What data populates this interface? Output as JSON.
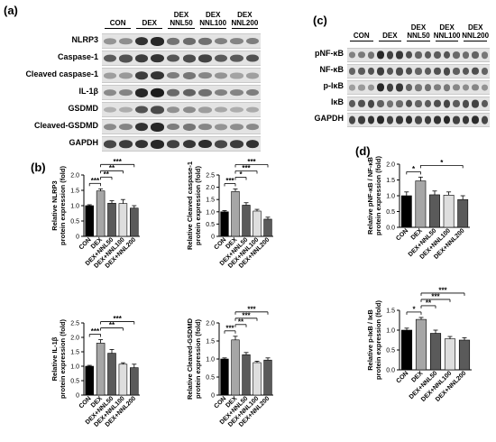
{
  "panels": {
    "a": "(a)",
    "b": "(b)",
    "c": "(c)",
    "d": "(d)"
  },
  "blot_a": {
    "lanes": [
      "CON",
      "DEX",
      "DEX\nNNL50",
      "DEX\nNNL100",
      "DEX\nNNL200"
    ],
    "rows": [
      "NLRP3",
      "Caspase-1",
      "Cleaved caspase-1",
      "IL-1β",
      "GSDMD",
      "Cleaved-GSDMD",
      "GAPDH"
    ],
    "intensity": [
      [
        0.45,
        0.85,
        0.6,
        0.55,
        0.5
      ],
      [
        0.75,
        0.8,
        0.75,
        0.75,
        0.7
      ],
      [
        0.4,
        0.8,
        0.55,
        0.45,
        0.35
      ],
      [
        0.5,
        0.9,
        0.65,
        0.55,
        0.5
      ],
      [
        0.3,
        0.7,
        0.45,
        0.35,
        0.3
      ],
      [
        0.5,
        0.85,
        0.55,
        0.45,
        0.45
      ],
      [
        0.85,
        0.85,
        0.85,
        0.85,
        0.85
      ]
    ]
  },
  "blot_c": {
    "lanes": [
      "CON",
      "DEX",
      "DEX\nNNL50",
      "DEX\nNNL100",
      "DEX\nNNL200"
    ],
    "rows": [
      "pNF-κB",
      "NF-κB",
      "p-IκB",
      "IκB",
      "GAPDH"
    ],
    "intensity": [
      [
        0.55,
        0.85,
        0.7,
        0.65,
        0.6
      ],
      [
        0.7,
        0.75,
        0.7,
        0.7,
        0.7
      ],
      [
        0.4,
        0.85,
        0.6,
        0.5,
        0.45
      ],
      [
        0.75,
        0.6,
        0.7,
        0.72,
        0.75
      ],
      [
        0.85,
        0.85,
        0.85,
        0.85,
        0.85
      ]
    ]
  },
  "colors": {
    "CON": "#000000",
    "DEX": "#a6a6a6",
    "DEX+NNL50": "#5a5a5a",
    "DEX+NNL100": "#dedede",
    "DEX+NNL200": "#5a5a5a"
  },
  "chart_data": [
    {
      "id": "b1",
      "type": "bar",
      "categories": [
        "CON",
        "DEX",
        "DEX+NNL50",
        "DEX+NNL100",
        "DEX+NNL200"
      ],
      "values": [
        1.0,
        1.48,
        1.08,
        1.07,
        0.92
      ],
      "errors": [
        0.03,
        0.07,
        0.08,
        0.13,
        0.08
      ],
      "ylim": [
        0,
        2
      ],
      "yticks": [
        0,
        0.5,
        1.0,
        1.5,
        2.0
      ],
      "ylabel": [
        "Relative NLRP3",
        "protein expression (fold)"
      ],
      "sig": [
        {
          "from": 0,
          "to": 1,
          "label": "***"
        },
        {
          "from": 1,
          "to": 2,
          "label": "**"
        },
        {
          "from": 1,
          "to": 3,
          "label": "**"
        },
        {
          "from": 1,
          "to": 4,
          "label": "***"
        }
      ]
    },
    {
      "id": "b2",
      "type": "bar",
      "categories": [
        "CON",
        "DEX",
        "DEX+NNL50",
        "DEX+NNL100",
        "DEX+NNL200"
      ],
      "values": [
        1.0,
        1.83,
        1.27,
        1.03,
        0.7
      ],
      "errors": [
        0.05,
        0.1,
        0.1,
        0.07,
        0.08
      ],
      "ylim": [
        0,
        2.5
      ],
      "yticks": [
        0,
        0.5,
        1.0,
        1.5,
        2.0,
        2.5
      ],
      "ylabel": [
        "Relative Cleaved caspase-1",
        "protein expression (fold)"
      ],
      "sig": [
        {
          "from": 0,
          "to": 1,
          "label": "***"
        },
        {
          "from": 1,
          "to": 2,
          "label": "*"
        },
        {
          "from": 1,
          "to": 3,
          "label": "***"
        },
        {
          "from": 1,
          "to": 4,
          "label": "***"
        }
      ]
    },
    {
      "id": "b3",
      "type": "bar",
      "categories": [
        "CON",
        "DEX",
        "DEX+NNL50",
        "DEX+NNL100",
        "DEX+NNL200"
      ],
      "values": [
        1.0,
        1.8,
        1.45,
        1.07,
        0.95
      ],
      "errors": [
        0.03,
        0.12,
        0.13,
        0.05,
        0.12
      ],
      "ylim": [
        0,
        2.5
      ],
      "yticks": [
        0,
        0.5,
        1.0,
        1.5,
        2.0,
        2.5
      ],
      "ylabel": [
        "Relative IL-1β",
        "protein expression (fold)"
      ],
      "sig": [
        {
          "from": 0,
          "to": 1,
          "label": "***"
        },
        {
          "from": 1,
          "to": 3,
          "label": "**"
        },
        {
          "from": 1,
          "to": 4,
          "label": "***"
        }
      ]
    },
    {
      "id": "b4",
      "type": "bar",
      "categories": [
        "CON",
        "DEX",
        "DEX+NNL50",
        "DEX+NNL100",
        "DEX+NNL200"
      ],
      "values": [
        1.0,
        1.53,
        1.12,
        0.9,
        0.97
      ],
      "errors": [
        0.03,
        0.1,
        0.06,
        0.04,
        0.06
      ],
      "ylim": [
        0,
        2
      ],
      "yticks": [
        0,
        0.5,
        1.0,
        1.5,
        2.0
      ],
      "ylabel": [
        "Relative Cleaved-GSDMD",
        "protein expression (fold)"
      ],
      "sig": [
        {
          "from": 0,
          "to": 1,
          "label": "***"
        },
        {
          "from": 1,
          "to": 2,
          "label": "**"
        },
        {
          "from": 1,
          "to": 3,
          "label": "***"
        },
        {
          "from": 1,
          "to": 4,
          "label": "***"
        }
      ]
    },
    {
      "id": "d1",
      "type": "bar",
      "categories": [
        "CON",
        "DEX",
        "DEX+NNL50",
        "DEX+NNL100",
        "DEX+NNL200"
      ],
      "values": [
        1.0,
        1.47,
        1.03,
        1.02,
        0.88
      ],
      "errors": [
        0.12,
        0.12,
        0.12,
        0.1,
        0.12
      ],
      "ylim": [
        0,
        2
      ],
      "yticks": [
        0.0,
        0.5,
        1.0,
        1.5,
        2.0
      ],
      "ylabel": [
        "Relative pNF-κB / NF-κB",
        "protein expression (fold)"
      ],
      "sig": [
        {
          "from": 0,
          "to": 1,
          "label": "*"
        },
        {
          "from": 1,
          "to": 4,
          "label": "*"
        }
      ]
    },
    {
      "id": "d2",
      "type": "bar",
      "categories": [
        "CON",
        "DEX",
        "DEX+NNL50",
        "DEX+NNL100",
        "DEX+NNL200"
      ],
      "values": [
        1.0,
        1.27,
        0.92,
        0.78,
        0.75
      ],
      "errors": [
        0.05,
        0.05,
        0.08,
        0.06,
        0.06
      ],
      "ylim": [
        0,
        1.5
      ],
      "yticks": [
        0.0,
        0.5,
        1.0,
        1.5
      ],
      "ylabel": [
        "Relative p-IκB / IκB",
        "protein expression (fold)"
      ],
      "sig": [
        {
          "from": 0,
          "to": 1,
          "label": "*"
        },
        {
          "from": 1,
          "to": 2,
          "label": "**"
        },
        {
          "from": 1,
          "to": 3,
          "label": "***"
        },
        {
          "from": 1,
          "to": 4,
          "label": "***"
        }
      ]
    }
  ]
}
